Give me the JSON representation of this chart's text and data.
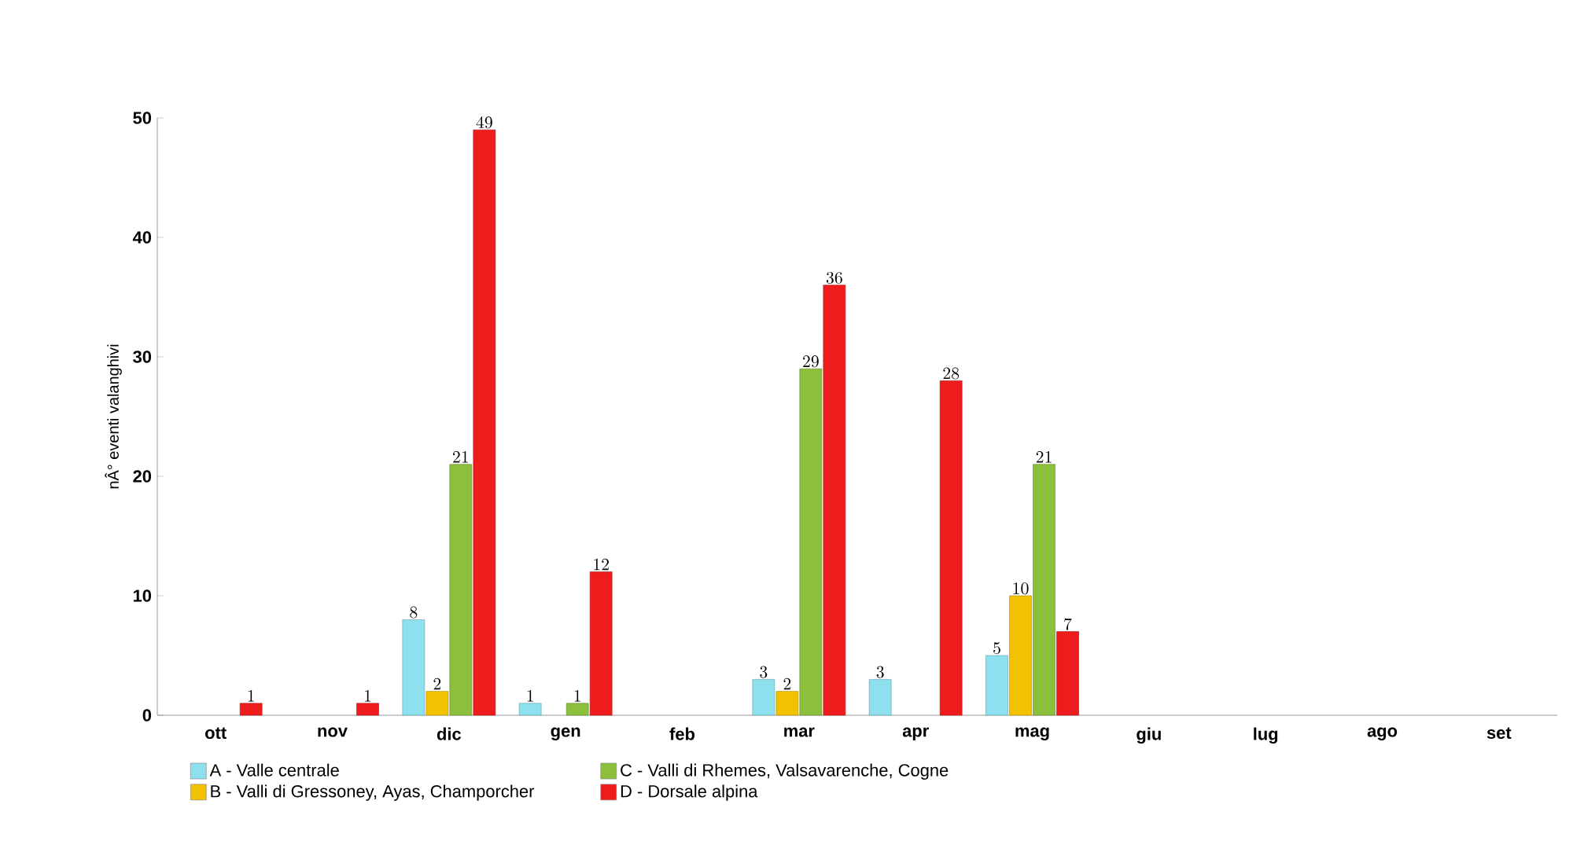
{
  "chart_data": {
    "type": "bar",
    "ylabel": "nÂ° eventi valanghivi",
    "categories": [
      "ott",
      "nov",
      "dic",
      "gen",
      "feb",
      "mar",
      "apr",
      "mag",
      "giu",
      "lug",
      "ago",
      "set"
    ],
    "series": [
      {
        "name": "A - Valle centrale",
        "color": "#8ee0ee",
        "values": [
          null,
          null,
          8,
          1,
          null,
          3,
          3,
          5,
          null,
          null,
          null,
          null
        ]
      },
      {
        "name": "B - Valli di Gressoney, Ayas, Champorcher",
        "color": "#f2c200",
        "values": [
          null,
          null,
          2,
          null,
          null,
          2,
          null,
          10,
          null,
          null,
          null,
          null
        ]
      },
      {
        "name": "C - Valli di Rhemes, Valsavarenche, Cogne",
        "color": "#8cbf3c",
        "values": [
          null,
          null,
          21,
          1,
          null,
          29,
          null,
          21,
          null,
          null,
          null,
          null
        ]
      },
      {
        "name": "D - Dorsale alpina",
        "color": "#ee1c1c",
        "values": [
          1,
          1,
          49,
          12,
          null,
          36,
          28,
          7,
          null,
          null,
          null,
          null
        ]
      }
    ],
    "ylim": [
      0,
      50
    ],
    "yticks": [
      0,
      10,
      20,
      30,
      40,
      50
    ],
    "data_labels": true,
    "legend": "bottom",
    "grid": false
  }
}
